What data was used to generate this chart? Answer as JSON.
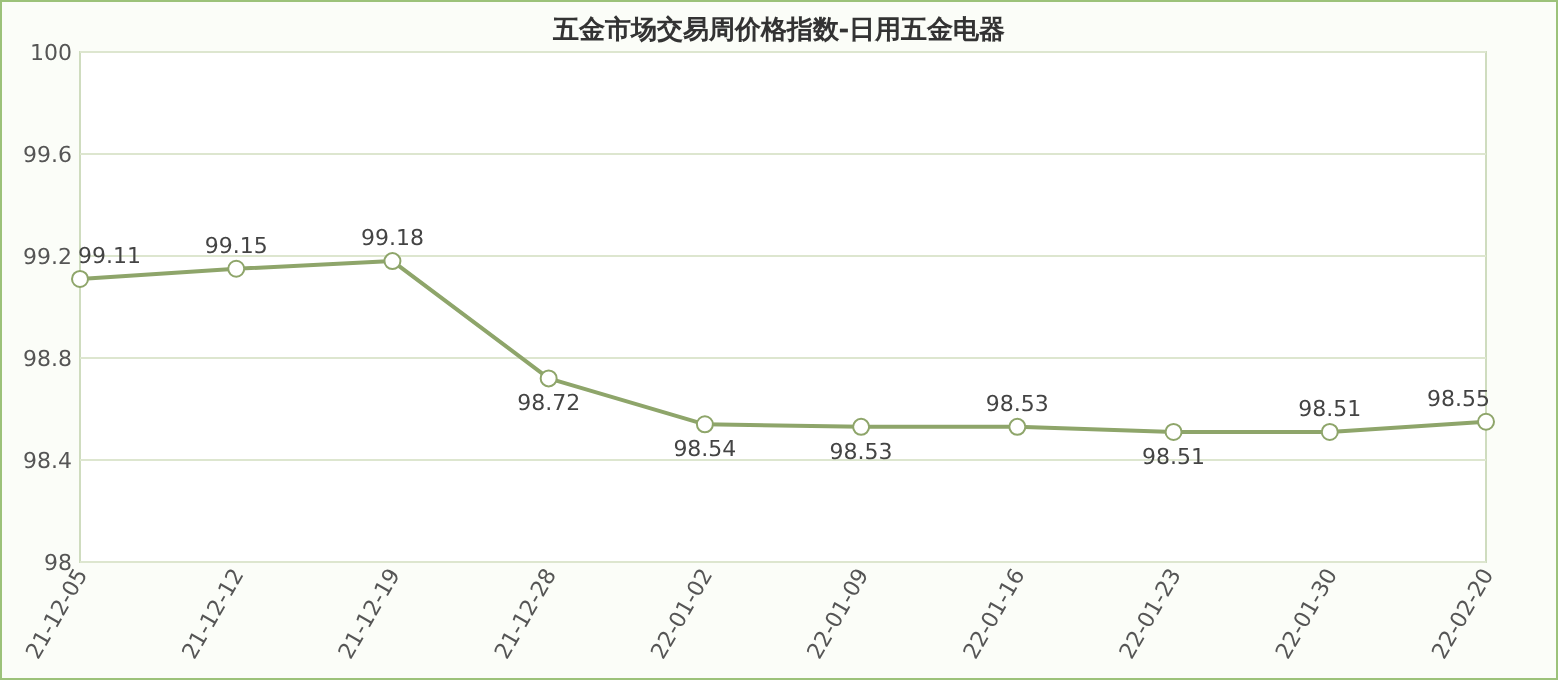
{
  "chart_data": {
    "type": "line",
    "title": "五金市场交易周价格指数-日用五金电器",
    "categories": [
      "21-12-05",
      "21-12-12",
      "21-12-19",
      "21-12-28",
      "22-01-02",
      "22-01-09",
      "22-01-16",
      "22-01-23",
      "22-01-30",
      "22-02-20"
    ],
    "series": [
      {
        "color": "#8ea56a",
        "values": [
          99.11,
          99.15,
          99.18,
          98.72,
          98.54,
          98.53,
          98.53,
          98.51,
          98.51,
          98.55
        ]
      }
    ],
    "ylim": [
      98,
      100
    ],
    "yticks": [
      98,
      98.4,
      98.8,
      99.2,
      99.6,
      100
    ],
    "grid": "y",
    "marker": "circle",
    "data_labels": true
  }
}
